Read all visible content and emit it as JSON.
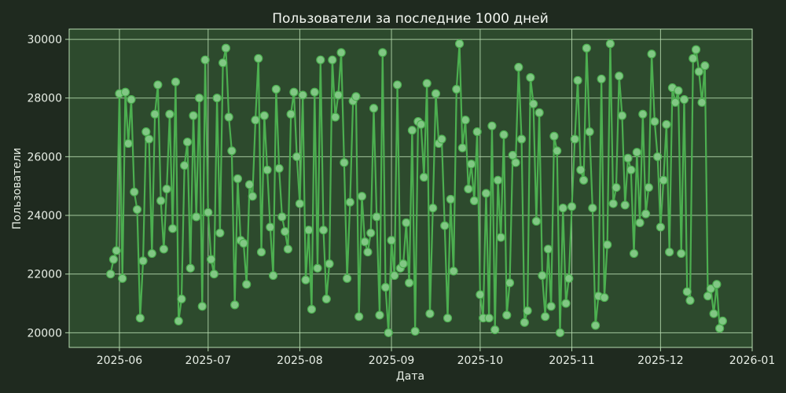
{
  "colors": {
    "figure_background": "#1f2a1f",
    "plot_background": "#2d4a2d",
    "grid": "#b7dcb0",
    "spine": "#b7dcb0",
    "line": "#4caf50",
    "marker_fill": "#81c784",
    "text": "#e8efe6"
  },
  "chart_data": {
    "type": "line",
    "title": "Пользователи за последние 1000 дней",
    "xlabel": "Дата",
    "ylabel": "Пользователи",
    "x_tick_labels": [
      "2025-06",
      "2025-07",
      "2025-08",
      "2025-09",
      "2025-10",
      "2025-11",
      "2025-12",
      "2026-01"
    ],
    "x_ticks": [
      "2025-06-01",
      "2025-07-01",
      "2025-08-01",
      "2025-09-01",
      "2025-10-01",
      "2025-11-01",
      "2025-12-01",
      "2026-01-01"
    ],
    "y_ticks": [
      20000,
      22000,
      24000,
      26000,
      28000,
      30000
    ],
    "y_tick_labels": [
      "20000",
      "22000",
      "24000",
      "26000",
      "28000",
      "30000"
    ],
    "xlim": [
      "2025-05-15",
      "2026-01-01"
    ],
    "ylim": [
      19500,
      30350
    ],
    "grid": true,
    "marker": "circle",
    "series": [
      {
        "x": [
          "2025-05-29",
          "2025-05-30",
          "2025-05-31",
          "2025-06-01",
          "2025-06-02",
          "2025-06-03",
          "2025-06-04",
          "2025-06-05",
          "2025-06-06",
          "2025-06-07",
          "2025-06-08",
          "2025-06-09",
          "2025-06-10",
          "2025-06-11",
          "2025-06-12",
          "2025-06-13",
          "2025-06-14",
          "2025-06-15",
          "2025-06-16",
          "2025-06-17",
          "2025-06-18",
          "2025-06-19",
          "2025-06-20",
          "2025-06-21",
          "2025-06-22",
          "2025-06-23",
          "2025-06-24",
          "2025-06-25",
          "2025-06-26",
          "2025-06-27",
          "2025-06-28",
          "2025-06-29",
          "2025-06-30",
          "2025-07-01",
          "2025-07-02",
          "2025-07-03",
          "2025-07-04",
          "2025-07-05",
          "2025-07-06",
          "2025-07-07",
          "2025-07-08",
          "2025-07-09",
          "2025-07-10",
          "2025-07-11",
          "2025-07-12",
          "2025-07-13",
          "2025-07-14",
          "2025-07-15",
          "2025-07-16",
          "2025-07-17",
          "2025-07-18",
          "2025-07-19",
          "2025-07-20",
          "2025-07-21",
          "2025-07-22",
          "2025-07-23",
          "2025-07-24",
          "2025-07-25",
          "2025-07-26",
          "2025-07-27",
          "2025-07-28",
          "2025-07-29",
          "2025-07-30",
          "2025-07-31",
          "2025-08-01",
          "2025-08-02",
          "2025-08-03",
          "2025-08-04",
          "2025-08-05",
          "2025-08-06",
          "2025-08-07",
          "2025-08-08",
          "2025-08-09",
          "2025-08-10",
          "2025-08-11",
          "2025-08-12",
          "2025-08-13",
          "2025-08-14",
          "2025-08-15",
          "2025-08-16",
          "2025-08-17",
          "2025-08-18",
          "2025-08-19",
          "2025-08-20",
          "2025-08-21",
          "2025-08-22",
          "2025-08-23",
          "2025-08-24",
          "2025-08-25",
          "2025-08-26",
          "2025-08-27",
          "2025-08-28",
          "2025-08-29",
          "2025-08-30",
          "2025-08-31",
          "2025-09-01",
          "2025-09-02",
          "2025-09-03",
          "2025-09-04",
          "2025-09-05",
          "2025-09-06",
          "2025-09-07",
          "2025-09-08",
          "2025-09-09",
          "2025-09-10",
          "2025-09-11",
          "2025-09-12",
          "2025-09-13",
          "2025-09-14",
          "2025-09-15",
          "2025-09-16",
          "2025-09-17",
          "2025-09-18",
          "2025-09-19",
          "2025-09-20",
          "2025-09-21",
          "2025-09-22",
          "2025-09-23",
          "2025-09-24",
          "2025-09-25",
          "2025-09-26",
          "2025-09-27",
          "2025-09-28",
          "2025-09-29",
          "2025-09-30",
          "2025-10-01",
          "2025-10-02",
          "2025-10-03",
          "2025-10-04",
          "2025-10-05",
          "2025-10-06",
          "2025-10-07",
          "2025-10-08",
          "2025-10-09",
          "2025-10-10",
          "2025-10-11",
          "2025-10-12",
          "2025-10-13",
          "2025-10-14",
          "2025-10-15",
          "2025-10-16",
          "2025-10-17",
          "2025-10-18",
          "2025-10-19",
          "2025-10-20",
          "2025-10-21",
          "2025-10-22",
          "2025-10-23",
          "2025-10-24",
          "2025-10-25",
          "2025-10-26",
          "2025-10-27",
          "2025-10-28",
          "2025-10-29",
          "2025-10-30",
          "2025-10-31",
          "2025-11-01",
          "2025-11-02",
          "2025-11-03",
          "2025-11-04",
          "2025-11-05",
          "2025-11-06",
          "2025-11-07",
          "2025-11-08",
          "2025-11-09",
          "2025-11-10",
          "2025-11-11",
          "2025-11-12",
          "2025-11-13",
          "2025-11-14",
          "2025-11-15",
          "2025-11-16",
          "2025-11-17",
          "2025-11-18",
          "2025-11-19",
          "2025-11-20",
          "2025-11-21",
          "2025-11-22",
          "2025-11-23",
          "2025-11-24",
          "2025-11-25",
          "2025-11-26",
          "2025-11-27",
          "2025-11-28",
          "2025-11-29",
          "2025-11-30",
          "2025-12-01",
          "2025-12-02",
          "2025-12-03",
          "2025-12-04",
          "2025-12-05",
          "2025-12-06",
          "2025-12-07",
          "2025-12-08",
          "2025-12-09",
          "2025-12-10",
          "2025-12-11",
          "2025-12-12",
          "2025-12-13",
          "2025-12-14",
          "2025-12-15",
          "2025-12-16",
          "2025-12-17",
          "2025-12-18",
          "2025-12-19",
          "2025-12-20",
          "2025-12-21",
          "2025-12-22"
        ],
        "y": [
          22000,
          22500,
          22800,
          28150,
          21850,
          28200,
          26450,
          27950,
          24800,
          24200,
          20500,
          22450,
          26850,
          26600,
          22700,
          27450,
          28450,
          24500,
          22850,
          24900,
          27450,
          23550,
          28550,
          20400,
          21150,
          25700,
          26500,
          22200,
          27400,
          23950,
          28000,
          20900,
          29300,
          24100,
          22500,
          22000,
          28000,
          23400,
          29200,
          29700,
          27350,
          26200,
          20950,
          25250,
          23150,
          23050,
          21650,
          25050,
          24650,
          27250,
          29350,
          22750,
          27400,
          25550,
          23600,
          21950,
          28300,
          25600,
          23950,
          23450,
          22850,
          27450,
          28200,
          26000,
          24400,
          28100,
          21800,
          23500,
          20800,
          28200,
          22200,
          29300,
          23500,
          21150,
          22350,
          29300,
          27350,
          28100,
          29550,
          25800,
          21850,
          24450,
          27900,
          28050,
          20550,
          24650,
          23100,
          22750,
          23400,
          27650,
          23950,
          20600,
          29550,
          21550,
          20000,
          23150,
          21950,
          28450,
          22200,
          22350,
          23750,
          21700,
          26900,
          20050,
          27200,
          27100,
          25300,
          28500,
          20650,
          24250,
          28150,
          26450,
          26600,
          23650,
          20500,
          24550,
          22100,
          28300,
          29850,
          26300,
          27250,
          24900,
          25750,
          24500,
          26850,
          21300,
          20500,
          24750,
          20500,
          27050,
          20100,
          25200,
          23250,
          26750,
          20600,
          21700,
          26050,
          25800,
          29050,
          26600,
          20350,
          20750,
          28700,
          27800,
          23800,
          27500,
          21950,
          20550,
          22850,
          20900,
          26700,
          26200,
          20000,
          24250,
          21000,
          21850,
          24300,
          26600,
          28600,
          25550,
          25200,
          29700,
          26850,
          24250,
          20250,
          21250,
          28650,
          21200,
          23000,
          29850,
          24400,
          24950,
          28750,
          27400,
          24350,
          25950,
          25550,
          22700,
          26150,
          23750,
          27450,
          24050,
          24950,
          29500,
          27200,
          26000,
          23600,
          25200,
          27100,
          22750,
          28350,
          27850,
          28250,
          22700,
          27950,
          21400,
          21100,
          29350,
          29650,
          28900,
          27850,
          29100,
          21250,
          21500,
          20650,
          21650,
          20150,
          20400
        ]
      }
    ]
  }
}
